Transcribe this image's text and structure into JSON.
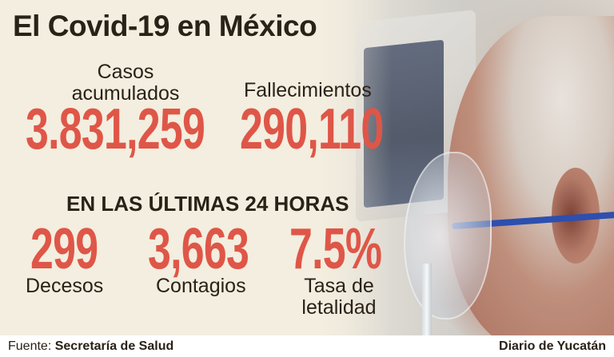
{
  "title": "El Covid-19 en México",
  "cumulative": {
    "cases": {
      "label": "Casos acumulados",
      "value": "3.831,259"
    },
    "deaths": {
      "label": "Fallecimientos",
      "value": "290,110"
    }
  },
  "last24": {
    "heading": "EN LAS ÚLTIMAS 24 HORAS",
    "items": [
      {
        "label": "Decesos",
        "value": "299"
      },
      {
        "label": "Contagios",
        "value": "3,663"
      },
      {
        "label": "Tasa de letalidad",
        "value": "7.5%"
      }
    ]
  },
  "footer": {
    "source_prefix": "Fuente:",
    "source_name": "Secretaría de Salud",
    "brand": "Diario de Yucatán"
  },
  "colors": {
    "accent": "#df5648",
    "text": "#2a2117",
    "background": "#f3eedf"
  },
  "image": {
    "description": "elderly man wearing oxygen mask in front of medical monitor"
  }
}
